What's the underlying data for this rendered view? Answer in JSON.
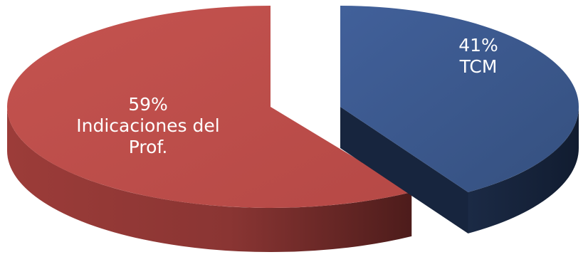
{
  "chart_data": {
    "type": "pie",
    "style": "3d-exploded",
    "title": "",
    "series": [
      {
        "values": [
          41,
          59
        ],
        "slices": [
          {
            "value": 41,
            "percent_label": "41%",
            "label_lines": [
              "TCM"
            ],
            "color": "#3d5a8a",
            "side_color": "#1f3150"
          },
          {
            "value": 59,
            "percent_label": "59%",
            "label_lines": [
              "Indicaciones del",
              "Prof."
            ],
            "color": "#c0504d",
            "side_color": "#7a2e2c"
          }
        ]
      }
    ],
    "legend": "none",
    "data_labels": "inside"
  }
}
